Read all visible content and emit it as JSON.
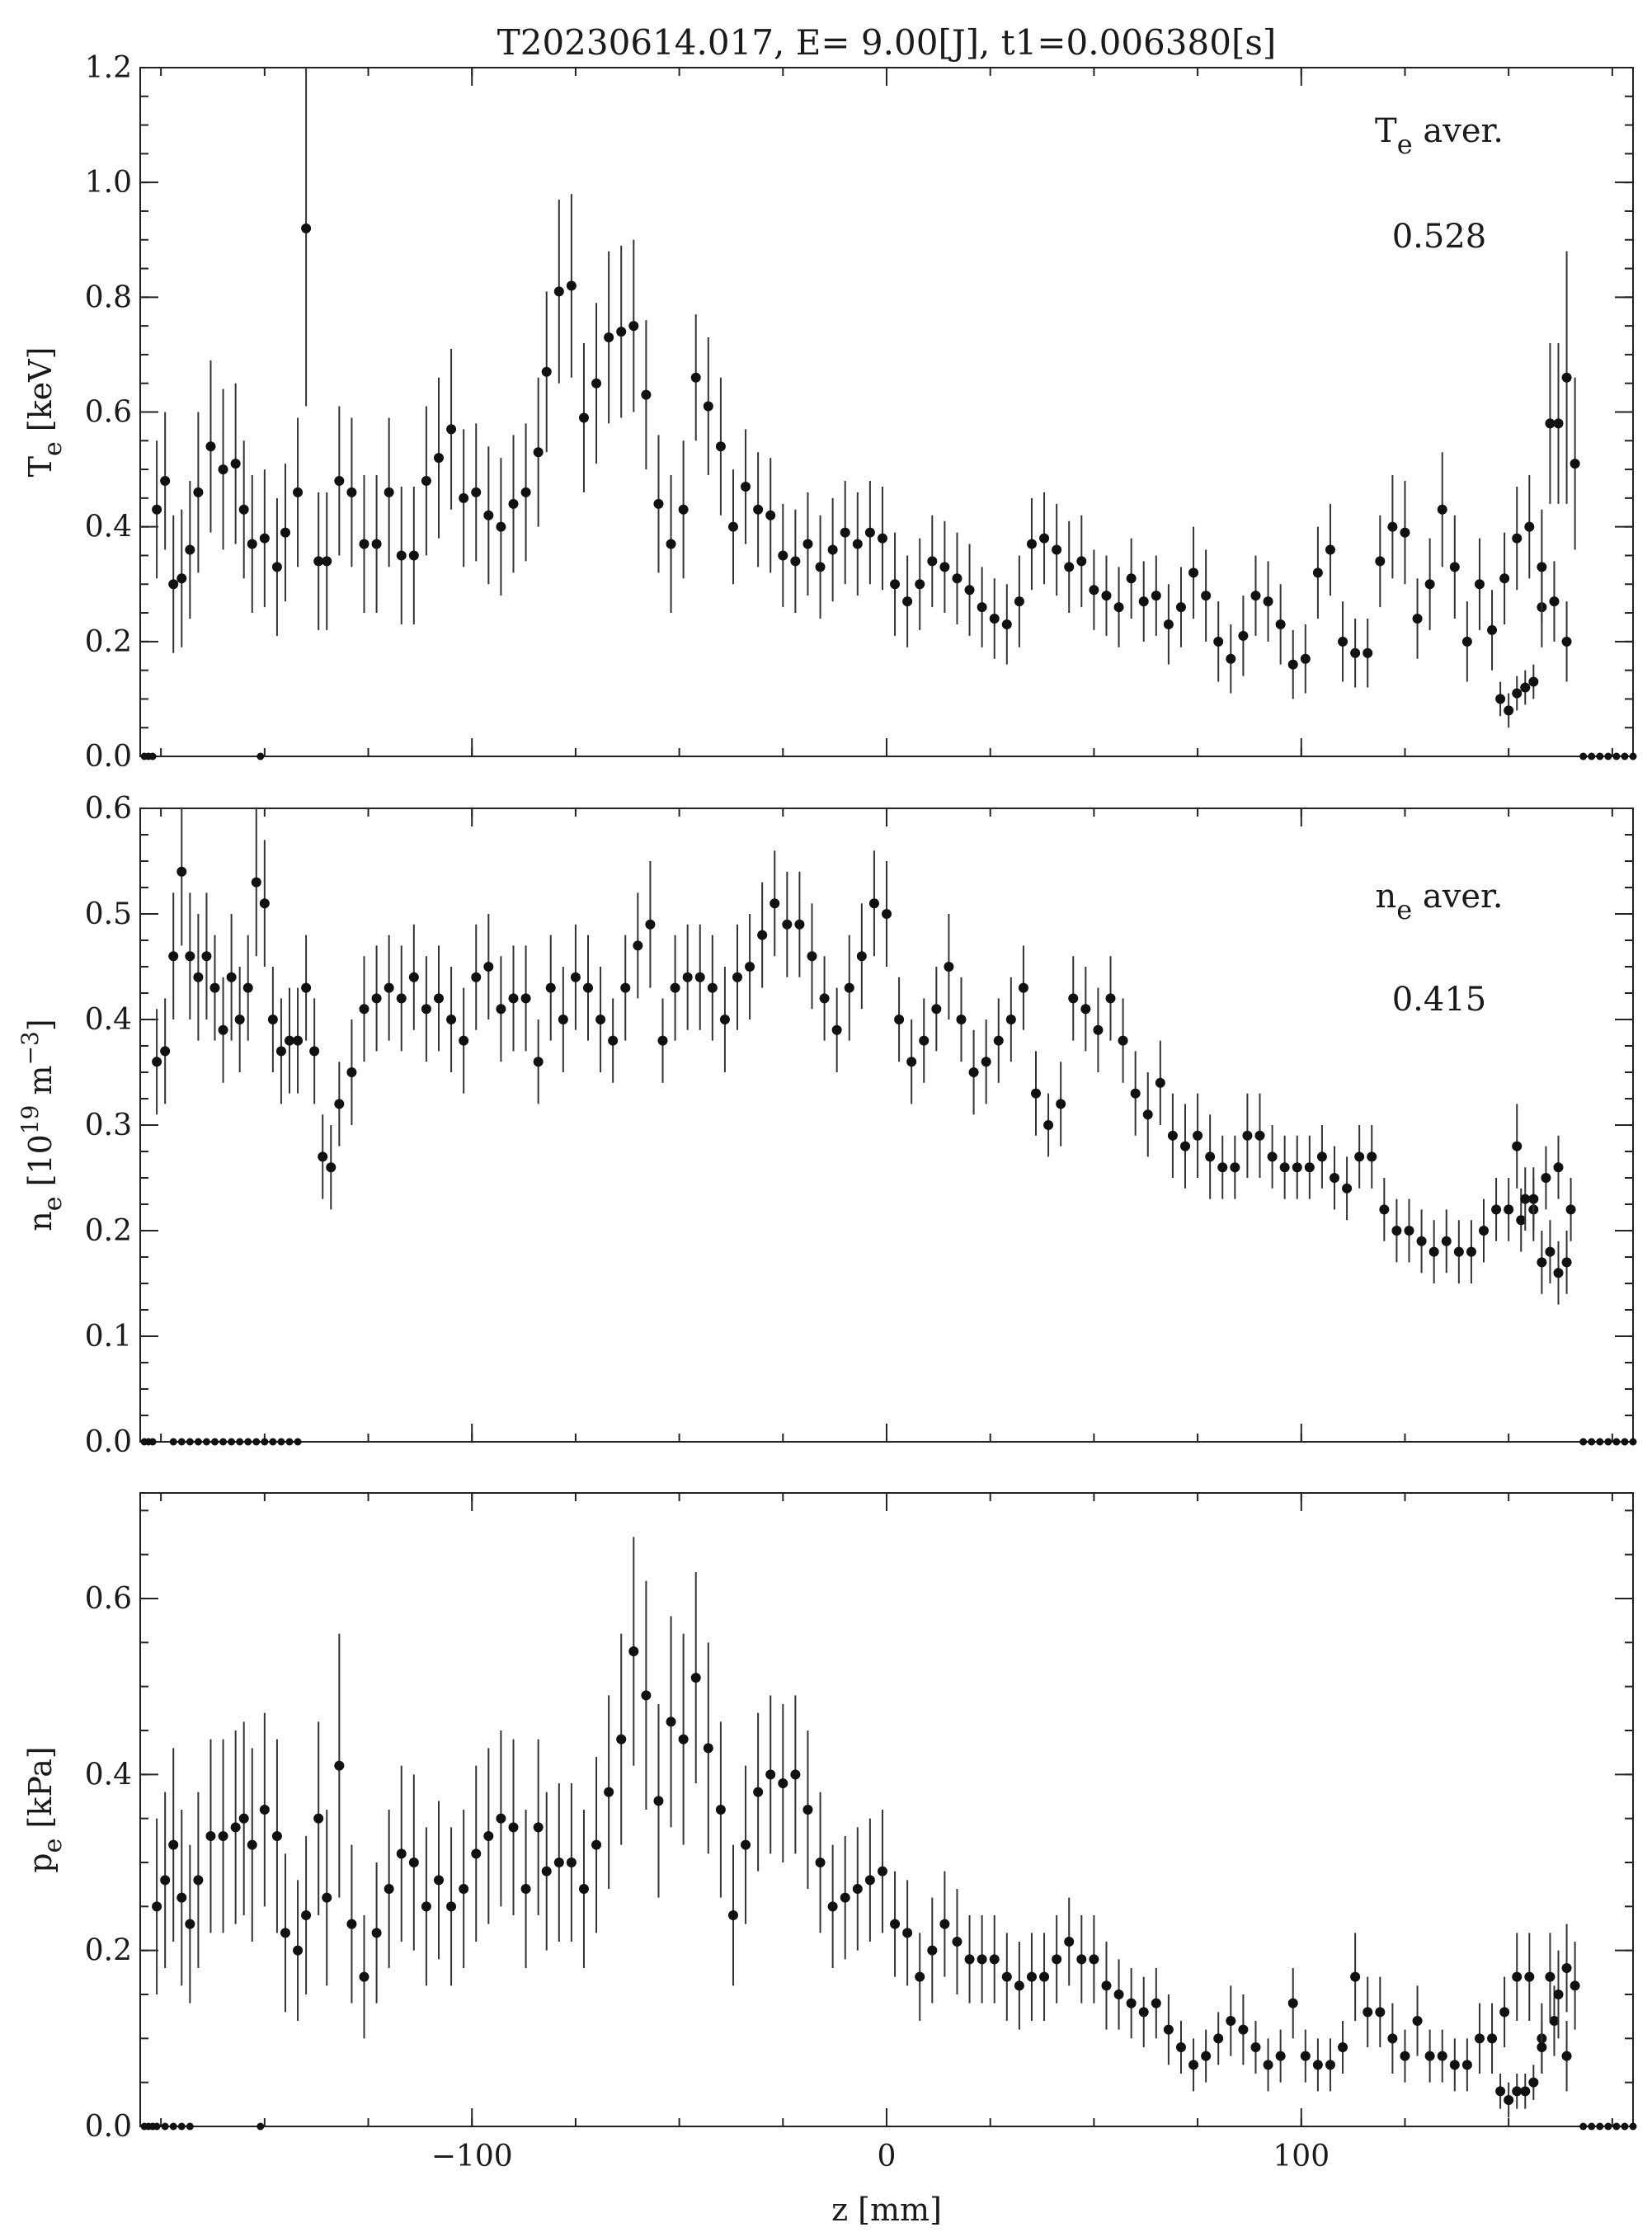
{
  "title": "T20230614.017, E= 9.00[J], t1=0.006380[s]",
  "xlabel": "z [mm]",
  "chart_data": [
    {
      "type": "scatter",
      "id": "te",
      "ylabel": {
        "main": "T",
        "sub": "e",
        "rest": " [keV]"
      },
      "annotation": {
        "main": "T",
        "sub": "e",
        "rest": " aver.",
        "value": "0.528"
      },
      "xlim": [
        -180,
        180
      ],
      "ylim": [
        0,
        1.2
      ],
      "yticks": [
        0.0,
        0.2,
        0.4,
        0.6,
        0.8,
        1.0,
        1.2
      ],
      "ytick_labels": [
        "0.0",
        "0.2",
        "0.4",
        "0.6",
        "0.8",
        "1.0",
        "1.2"
      ],
      "xticks": [
        -100,
        0,
        100
      ],
      "x": [
        -176,
        -174,
        -172,
        -170,
        -168,
        -166,
        -163,
        -160,
        -157,
        -155,
        -153,
        -150,
        -147,
        -145,
        -142,
        -140,
        -137,
        -135,
        -132,
        -129,
        -126,
        -123,
        -120,
        -117,
        -114,
        -111,
        -108,
        -105,
        -102,
        -99,
        -96,
        -93,
        -90,
        -87,
        -84,
        -82,
        -79,
        -76,
        -73,
        -70,
        -67,
        -64,
        -61,
        -58,
        -55,
        -52,
        -49,
        -46,
        -43,
        -40,
        -37,
        -34,
        -31,
        -28,
        -25,
        -22,
        -19,
        -16,
        -13,
        -10,
        -7,
        -4,
        -1,
        2,
        5,
        8,
        11,
        14,
        17,
        20,
        23,
        26,
        29,
        32,
        35,
        38,
        41,
        44,
        47,
        50,
        53,
        56,
        59,
        62,
        65,
        68,
        71,
        74,
        77,
        80,
        83,
        86,
        89,
        92,
        95,
        98,
        101,
        104,
        107,
        110,
        113,
        116,
        119,
        122,
        125,
        128,
        131,
        134,
        137,
        140,
        143,
        146,
        149,
        152,
        155,
        158,
        161,
        164
      ],
      "y": [
        0.43,
        0.48,
        0.3,
        0.31,
        0.36,
        0.46,
        0.54,
        0.5,
        0.51,
        0.43,
        0.37,
        0.38,
        0.33,
        0.39,
        0.46,
        0.92,
        0.34,
        0.34,
        0.48,
        0.46,
        0.37,
        0.37,
        0.46,
        0.35,
        0.35,
        0.48,
        0.52,
        0.57,
        0.45,
        0.46,
        0.42,
        0.4,
        0.44,
        0.46,
        0.53,
        0.67,
        0.81,
        0.82,
        0.59,
        0.65,
        0.73,
        0.74,
        0.75,
        0.63,
        0.44,
        0.37,
        0.43,
        0.66,
        0.61,
        0.54,
        0.4,
        0.47,
        0.43,
        0.42,
        0.35,
        0.34,
        0.37,
        0.33,
        0.36,
        0.39,
        0.37,
        0.39,
        0.38,
        0.3,
        0.27,
        0.3,
        0.34,
        0.33,
        0.31,
        0.29,
        0.26,
        0.24,
        0.23,
        0.27,
        0.37,
        0.38,
        0.36,
        0.33,
        0.34,
        0.29,
        0.28,
        0.26,
        0.31,
        0.27,
        0.28,
        0.23,
        0.26,
        0.32,
        0.28,
        0.2,
        0.17,
        0.21,
        0.28,
        0.27,
        0.23,
        0.16,
        0.17,
        0.32,
        0.36,
        0.2,
        0.18,
        0.18,
        0.34,
        0.4,
        0.39,
        0.24,
        0.3,
        0.43,
        0.33,
        0.2,
        0.3,
        0.22,
        0.31,
        0.38,
        0.4,
        0.26,
        0.27,
        0.2
      ],
      "err": [
        0.12,
        0.12,
        0.12,
        0.12,
        0.12,
        0.14,
        0.15,
        0.14,
        0.14,
        0.12,
        0.12,
        0.12,
        0.12,
        0.12,
        0.13,
        0.31,
        0.12,
        0.12,
        0.13,
        0.13,
        0.12,
        0.12,
        0.13,
        0.12,
        0.12,
        0.13,
        0.14,
        0.14,
        0.12,
        0.12,
        0.12,
        0.12,
        0.12,
        0.12,
        0.13,
        0.14,
        0.16,
        0.16,
        0.13,
        0.14,
        0.15,
        0.15,
        0.15,
        0.13,
        0.12,
        0.12,
        0.12,
        0.11,
        0.12,
        0.12,
        0.1,
        0.1,
        0.1,
        0.1,
        0.09,
        0.09,
        0.09,
        0.09,
        0.09,
        0.09,
        0.09,
        0.09,
        0.09,
        0.09,
        0.08,
        0.08,
        0.08,
        0.08,
        0.08,
        0.08,
        0.07,
        0.07,
        0.07,
        0.08,
        0.08,
        0.08,
        0.08,
        0.08,
        0.08,
        0.07,
        0.07,
        0.07,
        0.07,
        0.07,
        0.07,
        0.07,
        0.07,
        0.08,
        0.08,
        0.07,
        0.06,
        0.07,
        0.07,
        0.07,
        0.07,
        0.06,
        0.06,
        0.08,
        0.08,
        0.07,
        0.06,
        0.06,
        0.08,
        0.09,
        0.09,
        0.07,
        0.08,
        0.1,
        0.09,
        0.07,
        0.08,
        0.07,
        0.08,
        0.09,
        0.09,
        0.07,
        0.07,
        0.07
      ],
      "x2": [
        148,
        150,
        152,
        154,
        156,
        158,
        160,
        162,
        164,
        166
      ],
      "y2": [
        0.1,
        0.08,
        0.11,
        0.12,
        0.13,
        0.33,
        0.58,
        0.58,
        0.66,
        0.51
      ],
      "err2": [
        0.03,
        0.03,
        0.03,
        0.03,
        0.03,
        0.1,
        0.14,
        0.14,
        0.22,
        0.15
      ],
      "zero_x": [
        -179,
        -178,
        -177,
        -151,
        168,
        170,
        172,
        174,
        176,
        178,
        180
      ]
    },
    {
      "type": "scatter",
      "id": "ne",
      "ylabel": {
        "main": "n",
        "sub": "e",
        "rest": " [10",
        "sup": "19",
        "rest2": " m",
        "sup2": "−3",
        "rest3": "]"
      },
      "annotation": {
        "main": "n",
        "sub": "e",
        "rest": " aver.",
        "value": "0.415"
      },
      "xlim": [
        -180,
        180
      ],
      "ylim": [
        0,
        0.6
      ],
      "yticks": [
        0.0,
        0.1,
        0.2,
        0.3,
        0.4,
        0.5,
        0.6
      ],
      "ytick_labels": [
        "0.0",
        "0.1",
        "0.2",
        "0.3",
        "0.4",
        "0.5",
        "0.6"
      ],
      "xticks": [
        -100,
        0,
        100
      ],
      "x": [
        -176,
        -174,
        -172,
        -170,
        -168,
        -166,
        -164,
        -162,
        -160,
        -158,
        -156,
        -154,
        -152,
        -150,
        -148,
        -146,
        -144,
        -142,
        -140,
        -138,
        -136,
        -134,
        -132,
        -129,
        -126,
        -123,
        -120,
        -117,
        -114,
        -111,
        -108,
        -105,
        -102,
        -99,
        -96,
        -93,
        -90,
        -87,
        -84,
        -81,
        -78,
        -75,
        -72,
        -69,
        -66,
        -63,
        -60,
        -57,
        -54,
        -51,
        -48,
        -45,
        -42,
        -39,
        -36,
        -33,
        -30,
        -27,
        -24,
        -21,
        -18,
        -15,
        -12,
        -9,
        -6,
        -3,
        0,
        3,
        6,
        9,
        12,
        15,
        18,
        21,
        24,
        27,
        30,
        33,
        36,
        39,
        42,
        45,
        48,
        51,
        54,
        57,
        60,
        63,
        66,
        69,
        72,
        75,
        78,
        81,
        84,
        87,
        90,
        93,
        96,
        99,
        102,
        105,
        108,
        111,
        114,
        117,
        120,
        123,
        126,
        129,
        132,
        135,
        138,
        141,
        144,
        147,
        150,
        153,
        156,
        159,
        162,
        165
      ],
      "y": [
        0.36,
        0.37,
        0.46,
        0.54,
        0.46,
        0.44,
        0.46,
        0.43,
        0.39,
        0.44,
        0.4,
        0.43,
        0.53,
        0.51,
        0.4,
        0.37,
        0.38,
        0.38,
        0.43,
        0.37,
        0.27,
        0.26,
        0.32,
        0.35,
        0.41,
        0.42,
        0.43,
        0.42,
        0.44,
        0.41,
        0.42,
        0.4,
        0.38,
        0.44,
        0.45,
        0.41,
        0.42,
        0.42,
        0.36,
        0.43,
        0.4,
        0.44,
        0.43,
        0.4,
        0.38,
        0.43,
        0.47,
        0.49,
        0.38,
        0.43,
        0.44,
        0.44,
        0.43,
        0.4,
        0.44,
        0.45,
        0.48,
        0.51,
        0.49,
        0.49,
        0.46,
        0.42,
        0.39,
        0.43,
        0.46,
        0.51,
        0.5,
        0.4,
        0.36,
        0.38,
        0.41,
        0.45,
        0.4,
        0.35,
        0.36,
        0.38,
        0.4,
        0.43,
        0.33,
        0.3,
        0.32,
        0.42,
        0.41,
        0.39,
        0.42,
        0.38,
        0.33,
        0.31,
        0.34,
        0.29,
        0.28,
        0.29,
        0.27,
        0.26,
        0.26,
        0.29,
        0.29,
        0.27,
        0.26,
        0.26,
        0.26,
        0.27,
        0.25,
        0.24,
        0.27,
        0.27,
        0.22,
        0.2,
        0.2,
        0.19,
        0.18,
        0.19,
        0.18,
        0.18,
        0.2,
        0.22,
        0.22,
        0.21,
        0.22,
        0.25,
        0.26,
        0.22
      ],
      "err": [
        0.05,
        0.05,
        0.06,
        0.07,
        0.06,
        0.06,
        0.06,
        0.05,
        0.05,
        0.06,
        0.05,
        0.05,
        0.07,
        0.06,
        0.05,
        0.05,
        0.05,
        0.05,
        0.05,
        0.05,
        0.04,
        0.04,
        0.04,
        0.05,
        0.05,
        0.05,
        0.05,
        0.05,
        0.05,
        0.05,
        0.05,
        0.05,
        0.05,
        0.05,
        0.05,
        0.05,
        0.05,
        0.05,
        0.04,
        0.05,
        0.05,
        0.05,
        0.05,
        0.05,
        0.04,
        0.05,
        0.05,
        0.06,
        0.04,
        0.05,
        0.05,
        0.05,
        0.05,
        0.05,
        0.05,
        0.05,
        0.05,
        0.05,
        0.05,
        0.05,
        0.05,
        0.04,
        0.04,
        0.05,
        0.05,
        0.05,
        0.05,
        0.04,
        0.04,
        0.04,
        0.04,
        0.05,
        0.04,
        0.04,
        0.04,
        0.04,
        0.04,
        0.04,
        0.04,
        0.03,
        0.04,
        0.04,
        0.04,
        0.04,
        0.04,
        0.04,
        0.04,
        0.04,
        0.04,
        0.04,
        0.04,
        0.04,
        0.04,
        0.03,
        0.03,
        0.04,
        0.04,
        0.03,
        0.03,
        0.03,
        0.03,
        0.03,
        0.03,
        0.03,
        0.03,
        0.03,
        0.03,
        0.03,
        0.03,
        0.03,
        0.03,
        0.03,
        0.03,
        0.03,
        0.03,
        0.03,
        0.03,
        0.03,
        0.03,
        0.03,
        0.03,
        0.03
      ],
      "x2": [
        152,
        154,
        156,
        158,
        160,
        162,
        164
      ],
      "y2": [
        0.28,
        0.23,
        0.23,
        0.17,
        0.18,
        0.16,
        0.17
      ],
      "err2": [
        0.04,
        0.03,
        0.03,
        0.03,
        0.03,
        0.03,
        0.03
      ],
      "zero_x": [
        -179,
        -178,
        -177,
        -172,
        -170,
        -168,
        -166,
        -164,
        -162,
        -160,
        -158,
        -156,
        -154,
        -152,
        -150,
        -148,
        -146,
        -144,
        -142,
        168,
        170,
        172,
        174,
        176,
        178,
        180
      ]
    },
    {
      "type": "scatter",
      "id": "pe",
      "ylabel": {
        "main": "p",
        "sub": "e",
        "rest": " [kPa]"
      },
      "xlim": [
        -180,
        180
      ],
      "ylim": [
        0,
        0.72
      ],
      "yticks": [
        0.0,
        0.2,
        0.4,
        0.6
      ],
      "ytick_labels": [
        "0.0",
        "0.2",
        "0.4",
        "0.6"
      ],
      "xticks": [
        -100,
        0,
        100
      ],
      "x": [
        -176,
        -174,
        -172,
        -170,
        -168,
        -166,
        -163,
        -160,
        -157,
        -155,
        -153,
        -150,
        -147,
        -145,
        -142,
        -140,
        -137,
        -135,
        -132,
        -129,
        -126,
        -123,
        -120,
        -117,
        -114,
        -111,
        -108,
        -105,
        -102,
        -99,
        -96,
        -93,
        -90,
        -87,
        -84,
        -82,
        -79,
        -76,
        -73,
        -70,
        -67,
        -64,
        -61,
        -58,
        -55,
        -52,
        -49,
        -46,
        -43,
        -40,
        -37,
        -34,
        -31,
        -28,
        -25,
        -22,
        -19,
        -16,
        -13,
        -10,
        -7,
        -4,
        -1,
        2,
        5,
        8,
        11,
        14,
        17,
        20,
        23,
        26,
        29,
        32,
        35,
        38,
        41,
        44,
        47,
        50,
        53,
        56,
        59,
        62,
        65,
        68,
        71,
        74,
        77,
        80,
        83,
        86,
        89,
        92,
        95,
        98,
        101,
        104,
        107,
        110,
        113,
        116,
        119,
        122,
        125,
        128,
        131,
        134,
        137,
        140,
        143,
        146,
        149,
        152,
        155,
        158,
        161,
        164
      ],
      "y": [
        0.25,
        0.28,
        0.32,
        0.26,
        0.23,
        0.28,
        0.33,
        0.33,
        0.34,
        0.35,
        0.32,
        0.36,
        0.33,
        0.22,
        0.2,
        0.24,
        0.35,
        0.26,
        0.41,
        0.23,
        0.17,
        0.22,
        0.27,
        0.31,
        0.3,
        0.25,
        0.28,
        0.25,
        0.27,
        0.31,
        0.33,
        0.35,
        0.34,
        0.27,
        0.34,
        0.29,
        0.3,
        0.3,
        0.27,
        0.32,
        0.38,
        0.44,
        0.54,
        0.49,
        0.37,
        0.46,
        0.44,
        0.51,
        0.43,
        0.36,
        0.24,
        0.32,
        0.38,
        0.4,
        0.39,
        0.4,
        0.36,
        0.3,
        0.25,
        0.26,
        0.27,
        0.28,
        0.29,
        0.23,
        0.22,
        0.17,
        0.2,
        0.23,
        0.21,
        0.19,
        0.19,
        0.19,
        0.17,
        0.16,
        0.17,
        0.17,
        0.19,
        0.21,
        0.19,
        0.19,
        0.16,
        0.15,
        0.14,
        0.13,
        0.14,
        0.11,
        0.09,
        0.07,
        0.08,
        0.1,
        0.12,
        0.11,
        0.09,
        0.07,
        0.08,
        0.14,
        0.08,
        0.07,
        0.07,
        0.09,
        0.17,
        0.13,
        0.13,
        0.1,
        0.08,
        0.12,
        0.08,
        0.08,
        0.07,
        0.07,
        0.1,
        0.1,
        0.13,
        0.17,
        0.17,
        0.1,
        0.12,
        0.08
      ],
      "err": [
        0.1,
        0.1,
        0.11,
        0.1,
        0.09,
        0.1,
        0.11,
        0.11,
        0.11,
        0.11,
        0.11,
        0.11,
        0.11,
        0.09,
        0.08,
        0.09,
        0.11,
        0.1,
        0.15,
        0.09,
        0.07,
        0.08,
        0.09,
        0.1,
        0.1,
        0.09,
        0.09,
        0.09,
        0.09,
        0.1,
        0.1,
        0.1,
        0.1,
        0.09,
        0.1,
        0.09,
        0.09,
        0.09,
        0.09,
        0.1,
        0.11,
        0.12,
        0.13,
        0.13,
        0.11,
        0.12,
        0.12,
        0.12,
        0.12,
        0.1,
        0.08,
        0.09,
        0.09,
        0.09,
        0.09,
        0.09,
        0.09,
        0.08,
        0.07,
        0.07,
        0.07,
        0.07,
        0.07,
        0.06,
        0.06,
        0.05,
        0.06,
        0.06,
        0.06,
        0.05,
        0.05,
        0.05,
        0.05,
        0.05,
        0.05,
        0.05,
        0.05,
        0.05,
        0.05,
        0.05,
        0.05,
        0.04,
        0.04,
        0.04,
        0.04,
        0.04,
        0.03,
        0.03,
        0.03,
        0.03,
        0.04,
        0.04,
        0.03,
        0.03,
        0.03,
        0.04,
        0.03,
        0.03,
        0.03,
        0.03,
        0.05,
        0.04,
        0.04,
        0.04,
        0.03,
        0.04,
        0.03,
        0.03,
        0.03,
        0.03,
        0.04,
        0.04,
        0.04,
        0.05,
        0.05,
        0.04,
        0.04,
        0.04
      ],
      "x2": [
        148,
        150,
        152,
        154,
        156,
        158,
        160,
        162,
        164,
        166
      ],
      "y2": [
        0.04,
        0.03,
        0.04,
        0.04,
        0.05,
        0.09,
        0.17,
        0.15,
        0.18,
        0.16
      ],
      "err2": [
        0.02,
        0.02,
        0.02,
        0.02,
        0.02,
        0.03,
        0.05,
        0.05,
        0.05,
        0.05
      ],
      "zero_x": [
        -179,
        -178,
        -177,
        -176,
        -174,
        -172,
        -170,
        -168,
        -151,
        168,
        170,
        172,
        174,
        176,
        178,
        180
      ]
    }
  ]
}
